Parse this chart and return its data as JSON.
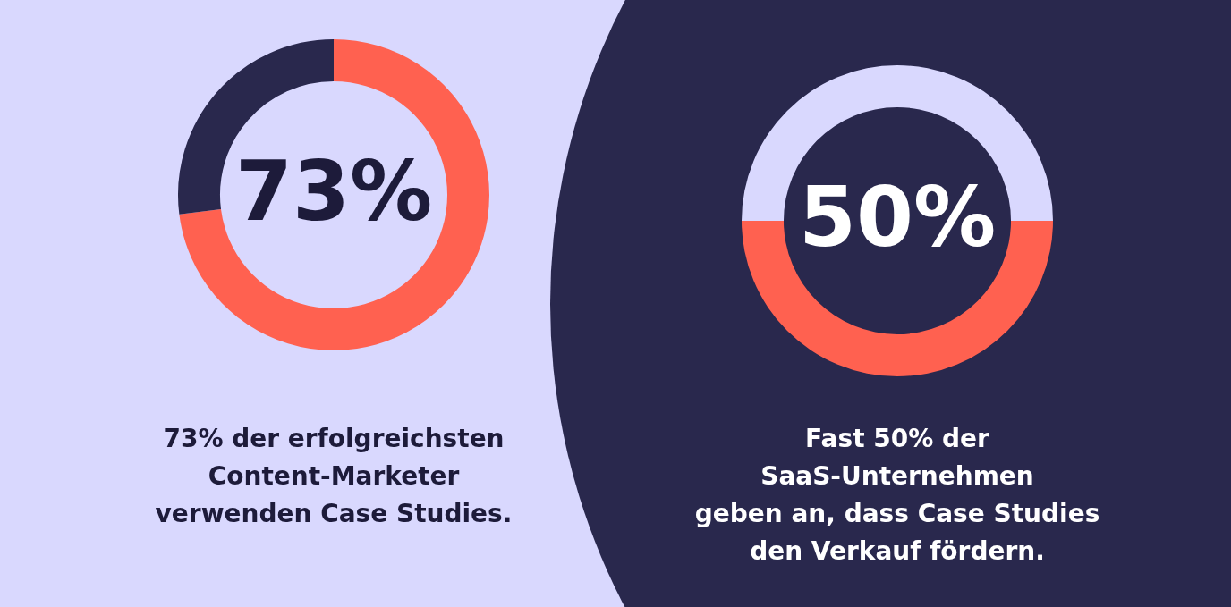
{
  "chart_data": [
    {
      "type": "donut",
      "categories": [
        null,
        null
      ],
      "values": [
        73,
        27
      ],
      "colors": [
        "#ff6150",
        "#29284d"
      ],
      "annotations": [
        "73%",
        "73% der erfolgreichsten\nContent-Marketer\nverwenden Case Studies."
      ]
    },
    {
      "type": "donut",
      "categories": [
        null,
        null
      ],
      "values": [
        50,
        50
      ],
      "colors": [
        "#ff6150",
        "#d9d8fe"
      ],
      "annotations": [
        "50%",
        "Fast 50% der\nSaaS-Unternehmen\ngeben an, dass Case Studies\nden Verkauf fördern."
      ]
    }
  ]
}
